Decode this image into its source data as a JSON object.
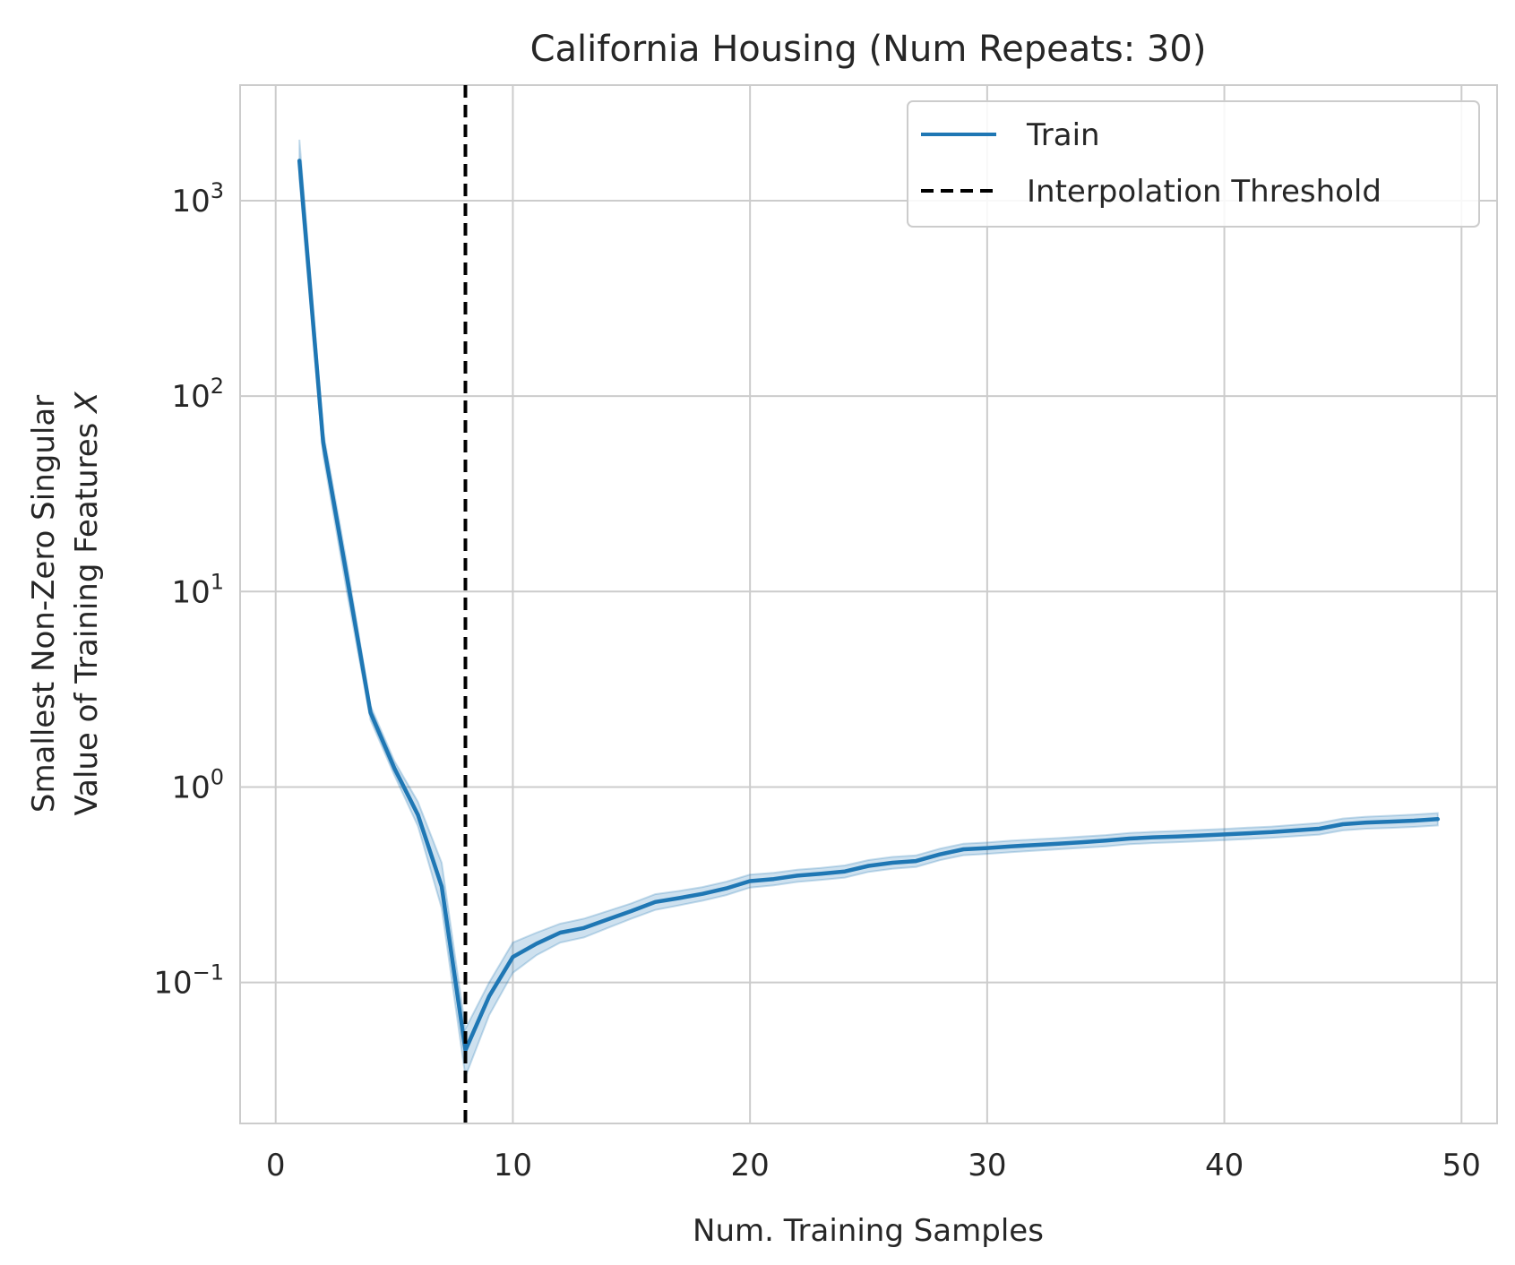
{
  "chart_data": {
    "type": "line",
    "title": "California Housing (Num Repeats: 30)",
    "xlabel": "Num. Training Samples",
    "ylabel_lines": [
      "Smallest Non-Zero Singular",
      "Value of Training Features X"
    ],
    "xlim": [
      -1.5,
      51.5
    ],
    "ylim": [
      0.019,
      3900
    ],
    "yscale": "log",
    "grid": true,
    "xticks": [
      0,
      10,
      20,
      30,
      40,
      50
    ],
    "yticks": [
      {
        "value": 1000,
        "base": "10",
        "exp": "3"
      },
      {
        "value": 100,
        "base": "10",
        "exp": "2"
      },
      {
        "value": 10,
        "base": "10",
        "exp": "1"
      },
      {
        "value": 1,
        "base": "10",
        "exp": "0"
      },
      {
        "value": 0.1,
        "base": "10",
        "exp": "−1"
      }
    ],
    "legend_placement": "top-right",
    "series": [
      {
        "name": "Train",
        "color": "#1f77b4",
        "style": "solid",
        "x": [
          1,
          2,
          3,
          4,
          5,
          6,
          7,
          8,
          9,
          10,
          11,
          12,
          13,
          14,
          15,
          16,
          17,
          18,
          19,
          20,
          21,
          22,
          23,
          24,
          25,
          26,
          27,
          28,
          29,
          30,
          31,
          32,
          33,
          34,
          35,
          36,
          37,
          38,
          39,
          40,
          41,
          42,
          43,
          44,
          45,
          46,
          47,
          48,
          49
        ],
        "y": [
          1600,
          58,
          12,
          2.4,
          1.25,
          0.72,
          0.31,
          0.045,
          0.085,
          0.135,
          0.158,
          0.18,
          0.19,
          0.21,
          0.232,
          0.258,
          0.27,
          0.284,
          0.303,
          0.33,
          0.338,
          0.352,
          0.36,
          0.37,
          0.395,
          0.41,
          0.418,
          0.452,
          0.48,
          0.487,
          0.497,
          0.505,
          0.513,
          0.522,
          0.532,
          0.545,
          0.553,
          0.558,
          0.565,
          0.572,
          0.58,
          0.588,
          0.6,
          0.612,
          0.645,
          0.658,
          0.665,
          0.673,
          0.685
        ],
        "lower": [
          1300,
          50,
          10,
          2.2,
          1.15,
          0.63,
          0.24,
          0.033,
          0.068,
          0.112,
          0.138,
          0.16,
          0.17,
          0.19,
          0.212,
          0.235,
          0.248,
          0.262,
          0.28,
          0.306,
          0.314,
          0.327,
          0.335,
          0.344,
          0.368,
          0.382,
          0.39,
          0.422,
          0.448,
          0.455,
          0.464,
          0.472,
          0.48,
          0.488,
          0.497,
          0.51,
          0.517,
          0.522,
          0.528,
          0.535,
          0.542,
          0.55,
          0.56,
          0.571,
          0.6,
          0.612,
          0.618,
          0.625,
          0.636
        ],
        "upper": [
          2050,
          66,
          14,
          2.6,
          1.36,
          0.84,
          0.41,
          0.058,
          0.1,
          0.16,
          0.18,
          0.2,
          0.212,
          0.232,
          0.254,
          0.283,
          0.294,
          0.308,
          0.328,
          0.356,
          0.364,
          0.378,
          0.386,
          0.397,
          0.423,
          0.439,
          0.447,
          0.483,
          0.513,
          0.52,
          0.531,
          0.54,
          0.548,
          0.558,
          0.568,
          0.582,
          0.59,
          0.596,
          0.603,
          0.611,
          0.62,
          0.628,
          0.641,
          0.655,
          0.69,
          0.705,
          0.713,
          0.722,
          0.735
        ]
      }
    ],
    "reference_lines": [
      {
        "name": "Interpolation Threshold",
        "x": 8,
        "color": "#000000",
        "style": "dashed"
      }
    ]
  }
}
